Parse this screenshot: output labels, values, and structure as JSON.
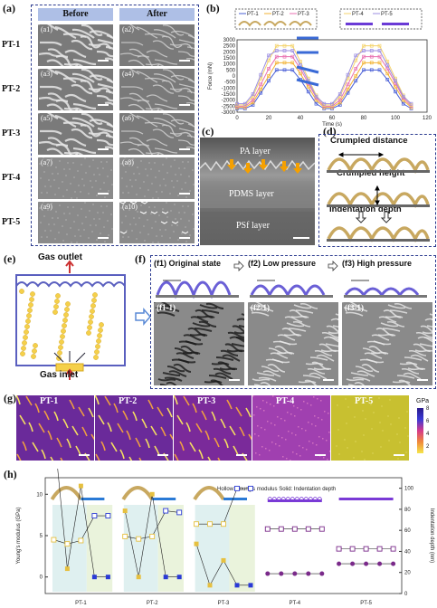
{
  "panels": {
    "a": "(a)",
    "b": "(b)",
    "c": "(c)",
    "d": "(d)",
    "e": "(e)",
    "f": "(f)",
    "g": "(g)",
    "h": "(h)"
  },
  "a": {
    "before": "Before",
    "after": "After",
    "rows": [
      {
        "name": "PT-1",
        "left": "(a1)",
        "right": "(a2)"
      },
      {
        "name": "PT-2",
        "left": "(a3)",
        "right": "(a4)"
      },
      {
        "name": "PT-3",
        "left": "(a5)",
        "right": "(a6)"
      },
      {
        "name": "PT-4",
        "left": "(a7)",
        "right": "(a8)"
      },
      {
        "name": "PT-5",
        "left": "(a9)",
        "right": "(a10)"
      }
    ]
  },
  "chart_data": [
    {
      "type": "line",
      "xlabel": "Time (s)",
      "ylabel": "Force (mN)",
      "xlim": [
        0,
        120
      ],
      "ylim": [
        -3000,
        3000
      ],
      "xticks": [
        "0",
        "20",
        "40",
        "60",
        "80",
        "100",
        "120"
      ],
      "yticks": [
        "-3000",
        "-2500",
        "-2000",
        "-1500",
        "-1000",
        "-500",
        "0",
        "500",
        "1000",
        "1500",
        "2000",
        "2500",
        "3000"
      ],
      "x": [
        0,
        5,
        10,
        15,
        20,
        25,
        30,
        35,
        40,
        45,
        50,
        55,
        60,
        65,
        70,
        75,
        80,
        85,
        90,
        95,
        100,
        105,
        110
      ],
      "series": [
        {
          "name": "PT-1",
          "color": "#4a5fd6",
          "values": [
            -2700,
            -2700,
            -2400,
            -1400,
            -400,
            500,
            500,
            500,
            -300,
            -1300,
            -2300,
            -2700,
            -2700,
            -2400,
            -1400,
            -400,
            500,
            500,
            500,
            -300,
            -1300,
            -2300,
            -2700
          ]
        },
        {
          "name": "PT-2",
          "color": "#f2b233",
          "values": [
            -2600,
            -2600,
            -2200,
            -1100,
            0,
            1100,
            1100,
            1100,
            200,
            -900,
            -2000,
            -2600,
            -2600,
            -2200,
            -1100,
            0,
            1100,
            1100,
            1100,
            200,
            -900,
            -2000,
            -2600
          ]
        },
        {
          "name": "PT-3",
          "color": "#e86fb0",
          "values": [
            -2500,
            -2500,
            -2000,
            -700,
            600,
            1600,
            1600,
            1600,
            600,
            -600,
            -1800,
            -2500,
            -2500,
            -2000,
            -700,
            600,
            1600,
            1600,
            1600,
            600,
            -600,
            -1800,
            -2500
          ]
        },
        {
          "name": "PT-4",
          "color": "#f4d36b",
          "values": [
            -2400,
            -2400,
            -1700,
            -200,
            1300,
            2500,
            2500,
            2500,
            1200,
            -200,
            -1600,
            -2400,
            -2400,
            -1700,
            -200,
            1300,
            2500,
            2500,
            2500,
            1200,
            -200,
            -1600,
            -2400
          ]
        },
        {
          "name": "PT-5",
          "color": "#9b8de0",
          "values": [
            -2300,
            -2300,
            -1500,
            100,
            1700,
            2100,
            2100,
            2100,
            900,
            -400,
            -1700,
            -2300,
            -2300,
            -1500,
            100,
            1700,
            2100,
            2100,
            2100,
            900,
            -400,
            -1700,
            -2300
          ]
        }
      ]
    },
    {
      "type": "scatter",
      "ylabel": "Young's modulus (GPa)",
      "y2label": "Indentation depth (nm)",
      "legend": "Hollow: Young's modulus  Solid: Indentation depth",
      "categories": [
        "PT-1",
        "PT-2",
        "PT-3",
        "PT-4",
        "PT-5"
      ],
      "ylim": [
        -2,
        12
      ],
      "y2lim": [
        0,
        110
      ],
      "yticks": [
        "0",
        "5",
        "10"
      ],
      "y2ticks": [
        "0",
        "20",
        "40",
        "60",
        "80",
        "100"
      ],
      "series": [
        {
          "name": "Young's modulus",
          "values": [
            [
              4.5,
              4.0,
              4.4,
              7.4,
              7.4
            ],
            [
              4.9,
              4.6,
              4.9,
              8.0,
              7.8
            ],
            [
              6.4,
              6.4,
              6.4,
              10.7,
              10.7
            ],
            [
              5.8,
              5.8,
              5.8,
              5.8,
              5.8
            ],
            [
              3.4,
              3.4,
              3.4,
              3.4,
              3.4
            ]
          ]
        },
        {
          "name": "Indentation depth",
          "values": [
            [
              18,
              1,
              11,
              0,
              0
            ],
            [
              8,
              0,
              10,
              0,
              0
            ],
            [
              4,
              -1,
              2,
              -1,
              -1
            ],
            [
              0.4,
              0.4,
              0.4,
              0.4,
              0.4
            ],
            [
              1.6,
              1.6,
              1.6,
              1.6,
              1.6
            ]
          ]
        }
      ]
    }
  ],
  "c": {
    "layers": [
      "PA layer",
      "PDMS layer",
      "PSf layer"
    ]
  },
  "d": {
    "labels": [
      "Crumpled distance",
      "Crumpled height",
      "Indentation depth"
    ]
  },
  "e": {
    "outlet": "Gas outlet",
    "inlet": "Gas inlet"
  },
  "f": {
    "states": [
      {
        "tag": "(f1)",
        "title": "Original state",
        "img": "(f1-1)"
      },
      {
        "tag": "(f2)",
        "title": "Low pressure",
        "img": "(f2-1)"
      },
      {
        "tag": "(f3)",
        "title": "High pressure",
        "img": "(f3-1)"
      }
    ],
    "d0": "d0",
    "d1": "d1",
    "d2": "d2"
  },
  "g": {
    "maps": [
      "PT-1",
      "PT-2",
      "PT-3",
      "PT-4",
      "PT-5"
    ],
    "unit": "GPa",
    "cbar": [
      "8",
      "6",
      "4",
      "2"
    ]
  }
}
